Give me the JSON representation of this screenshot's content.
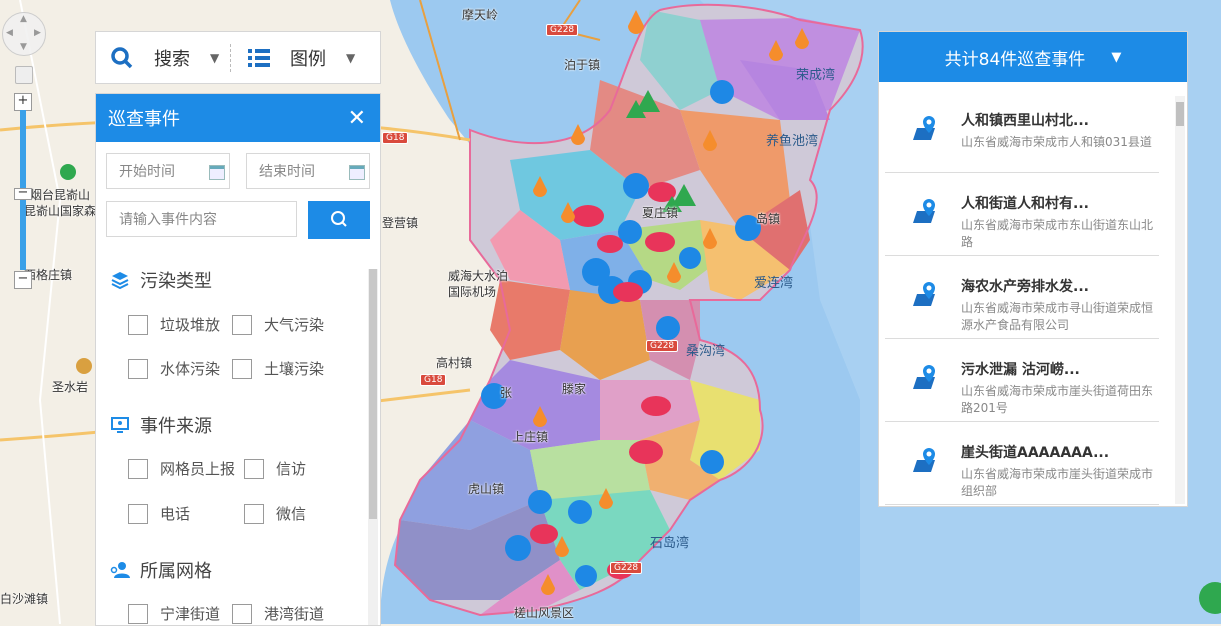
{
  "toolbar": {
    "search_label": "搜索",
    "legend_label": "图例"
  },
  "panel": {
    "title": "巡查事件",
    "start_time_placeholder": "开始时间",
    "end_time_placeholder": "结束时间",
    "content_placeholder": "请输入事件内容",
    "sections": [
      {
        "title": "污染类型",
        "options": [
          "垃圾堆放",
          "大气污染",
          "水体污染",
          "土壤污染"
        ]
      },
      {
        "title": "事件来源",
        "options": [
          "网格员上报",
          "信访",
          "电话",
          "微信"
        ]
      },
      {
        "title": "所属网格",
        "options": [
          "宁津街道",
          "港湾街道"
        ]
      }
    ]
  },
  "event_list": {
    "header": "共计84件巡查事件",
    "items": [
      {
        "title": "人和镇西里山村北...",
        "address": "山东省威海市荣成市人和镇031县道"
      },
      {
        "title": "人和街道人和村有...",
        "address": "山东省威海市荣成市东山街道东山北路"
      },
      {
        "title": "海农水产旁排水发...",
        "address": "山东省威海市荣成市寻山街道荣成恒源水产食品有限公司"
      },
      {
        "title": "污水泄漏 沽河崂...",
        "address": "山东省威海市荣成市崖头街道荷田东路201号"
      },
      {
        "title": "崖头街道AAAAAAA...",
        "address": "山东省威海市荣成市崖头街道荣成市组织部"
      }
    ]
  },
  "map": {
    "labels": [
      "摩天岭",
      "泊于镇",
      "荣成湾",
      "养鱼池湾",
      "登营镇",
      "威海大水泊国际机场",
      "爱连湾",
      "桑沟湾",
      "高村镇",
      "滕家",
      "上庄镇",
      "虎山镇",
      "石岛湾",
      "槎山风景区",
      "圣水岩",
      "昆嵛山国家森林公园",
      "烟台昆嵛山",
      "西格庄镇",
      "白沙滩镇",
      "夏庄镇",
      "岛镇",
      "张"
    ],
    "roads": [
      "G228",
      "G228",
      "G18",
      "G18",
      "G228"
    ],
    "colors": {
      "accent": "#1d8be6",
      "marker_blue": "#1e88e5",
      "marker_red": "#e8345a",
      "marker_orange": "#f58d2c",
      "marker_green": "#2fa84f"
    }
  }
}
